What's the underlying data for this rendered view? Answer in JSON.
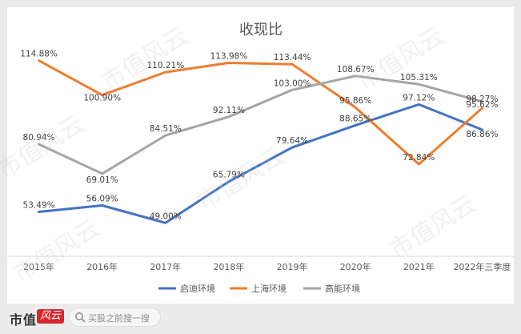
{
  "chart_data": {
    "type": "line",
    "title": "收现比",
    "categories": [
      "2015年",
      "2016年",
      "2017年",
      "2018年",
      "2019年",
      "2020年",
      "2021年",
      "2022年三季度"
    ],
    "ylim": [
      0,
      125
    ],
    "grid": false,
    "legend_position": "bottom",
    "series": [
      {
        "name": "启迪环境",
        "color": "#4472c4",
        "values": [
          53.49,
          56.09,
          49.0,
          65.79,
          79.64,
          88.65,
          97.12,
          86.86
        ],
        "labels": [
          "53.49%",
          "56.09%",
          "49.00%",
          "65.79%",
          "79.64%",
          "88.65%",
          "97.12%",
          "86.86%"
        ]
      },
      {
        "name": "上海环境",
        "color": "#ed7d31",
        "values": [
          114.88,
          100.9,
          110.21,
          113.98,
          113.44,
          95.86,
          72.84,
          95.62
        ],
        "labels": [
          "114.88%",
          "100.90%",
          "110.21%",
          "113.98%",
          "113.44%",
          "95.86%",
          "72.84%",
          "95.62%"
        ]
      },
      {
        "name": "高能环境",
        "color": "#a5a5a5",
        "values": [
          80.94,
          69.01,
          84.51,
          92.11,
          103.0,
          108.67,
          105.31,
          98.27
        ],
        "labels": [
          "80.94%",
          "69.01%",
          "84.51%",
          "92.11%",
          "103.00%",
          "108.67%",
          "105.31%",
          "98.27%"
        ]
      }
    ]
  },
  "footer": {
    "brand": "市值",
    "brand_logo_text": "风云",
    "search_placeholder": "买股之前搜一搜"
  },
  "watermark_text": "市值风云"
}
